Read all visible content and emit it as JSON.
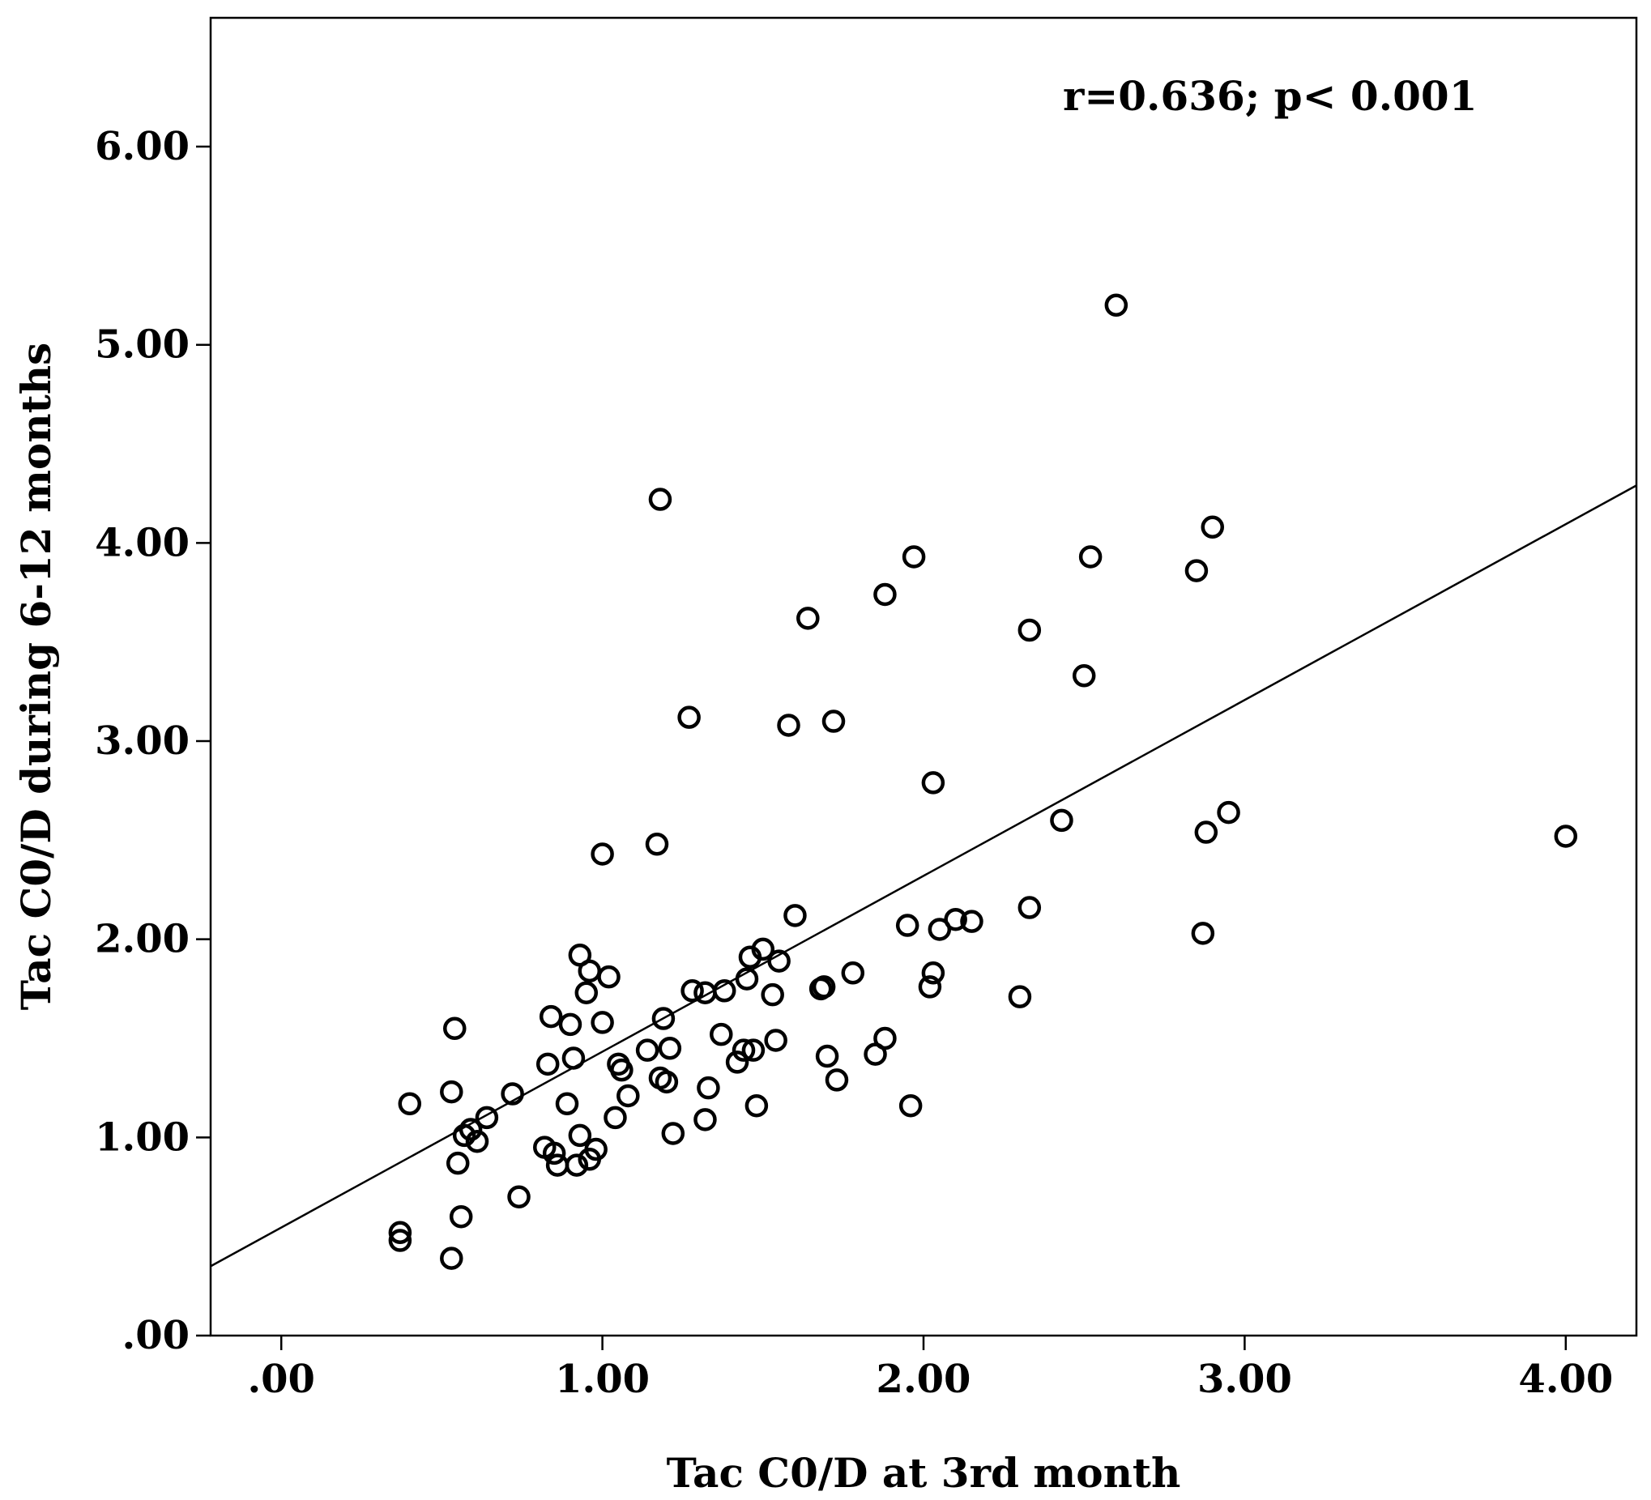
{
  "chart_data": {
    "type": "scatter",
    "title": "",
    "xlabel": "Tac C0/D at 3rd month",
    "ylabel": "Tac C0/D during 6-12 months",
    "annotation": "r=0.636; p< 0.001",
    "xlim": [
      -0.22,
      4.22
    ],
    "ylim": [
      0.0,
      6.65
    ],
    "xticks": [
      0,
      1,
      2,
      3,
      4
    ],
    "xtick_labels": [
      ".00",
      "1.00",
      "2.00",
      "3.00",
      "4.00"
    ],
    "yticks": [
      0,
      1,
      2,
      3,
      4,
      5,
      6
    ],
    "ytick_labels": [
      ".00",
      "1.00",
      "2.00",
      "3.00",
      "4.00",
      "5.00",
      "6.00"
    ],
    "grid": false,
    "fit_line": {
      "x0": -0.22,
      "y0": 0.35,
      "x1": 4.22,
      "y1": 4.29
    },
    "points": [
      [
        0.37,
        0.52
      ],
      [
        0.37,
        0.48
      ],
      [
        0.4,
        1.17
      ],
      [
        0.53,
        0.39
      ],
      [
        0.53,
        1.23
      ],
      [
        0.54,
        1.55
      ],
      [
        0.55,
        0.87
      ],
      [
        0.56,
        0.6
      ],
      [
        0.57,
        1.01
      ],
      [
        0.59,
        1.04
      ],
      [
        0.61,
        0.98
      ],
      [
        0.64,
        1.1
      ],
      [
        0.72,
        1.22
      ],
      [
        0.74,
        0.7
      ],
      [
        0.82,
        0.95
      ],
      [
        0.83,
        1.37
      ],
      [
        0.84,
        1.61
      ],
      [
        0.85,
        0.92
      ],
      [
        0.86,
        0.86
      ],
      [
        0.89,
        1.17
      ],
      [
        0.9,
        1.57
      ],
      [
        0.91,
        1.4
      ],
      [
        0.92,
        0.86
      ],
      [
        0.93,
        1.01
      ],
      [
        0.93,
        1.92
      ],
      [
        0.95,
        1.73
      ],
      [
        0.96,
        1.84
      ],
      [
        0.96,
        0.89
      ],
      [
        0.98,
        0.94
      ],
      [
        1.0,
        2.43
      ],
      [
        1.0,
        1.58
      ],
      [
        1.02,
        1.81
      ],
      [
        1.04,
        1.1
      ],
      [
        1.05,
        1.37
      ],
      [
        1.06,
        1.34
      ],
      [
        1.08,
        1.21
      ],
      [
        1.14,
        1.44
      ],
      [
        1.17,
        2.48
      ],
      [
        1.18,
        4.22
      ],
      [
        1.18,
        1.3
      ],
      [
        1.19,
        1.6
      ],
      [
        1.2,
        1.28
      ],
      [
        1.21,
        1.45
      ],
      [
        1.22,
        1.02
      ],
      [
        1.27,
        3.12
      ],
      [
        1.28,
        1.74
      ],
      [
        1.32,
        1.73
      ],
      [
        1.32,
        1.09
      ],
      [
        1.33,
        1.25
      ],
      [
        1.37,
        1.52
      ],
      [
        1.38,
        1.74
      ],
      [
        1.42,
        1.38
      ],
      [
        1.44,
        1.44
      ],
      [
        1.45,
        1.8
      ],
      [
        1.46,
        1.91
      ],
      [
        1.47,
        1.44
      ],
      [
        1.48,
        1.16
      ],
      [
        1.5,
        1.95
      ],
      [
        1.53,
        1.72
      ],
      [
        1.54,
        1.49
      ],
      [
        1.55,
        1.89
      ],
      [
        1.58,
        3.08
      ],
      [
        1.6,
        2.12
      ],
      [
        1.64,
        3.62
      ],
      [
        1.68,
        1.75
      ],
      [
        1.69,
        1.76
      ],
      [
        1.7,
        1.41
      ],
      [
        1.72,
        3.1
      ],
      [
        1.73,
        1.29
      ],
      [
        1.78,
        1.83
      ],
      [
        1.85,
        1.42
      ],
      [
        1.88,
        1.5
      ],
      [
        1.88,
        3.74
      ],
      [
        1.95,
        2.07
      ],
      [
        1.96,
        1.16
      ],
      [
        1.97,
        3.93
      ],
      [
        2.02,
        1.76
      ],
      [
        2.03,
        2.79
      ],
      [
        2.03,
        1.83
      ],
      [
        2.05,
        2.05
      ],
      [
        2.1,
        2.1
      ],
      [
        2.15,
        2.09
      ],
      [
        2.3,
        1.71
      ],
      [
        2.33,
        3.56
      ],
      [
        2.33,
        2.16
      ],
      [
        2.43,
        2.6
      ],
      [
        2.5,
        3.33
      ],
      [
        2.52,
        3.93
      ],
      [
        2.6,
        5.2
      ],
      [
        2.85,
        3.86
      ],
      [
        2.87,
        2.03
      ],
      [
        2.88,
        2.54
      ],
      [
        2.9,
        4.08
      ],
      [
        2.95,
        2.64
      ],
      [
        4.0,
        2.52
      ]
    ]
  }
}
